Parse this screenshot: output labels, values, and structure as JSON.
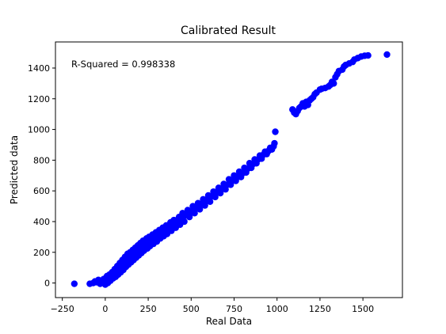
{
  "chart_data": {
    "type": "scatter",
    "title": "Calibrated Result",
    "xlabel": "Real Data",
    "ylabel": "Predicted data",
    "annotation": "R-Squared = 0.998338",
    "xlim": [
      -290,
      1730
    ],
    "ylim": [
      -95,
      1570
    ],
    "xticks": [
      -250,
      0,
      250,
      500,
      750,
      1000,
      1250,
      1500
    ],
    "xtick_labels": [
      "−250",
      "0",
      "250",
      "500",
      "750",
      "1000",
      "1250",
      "1500"
    ],
    "yticks": [
      0,
      200,
      400,
      600,
      800,
      1000,
      1200,
      1400
    ],
    "ytick_labels": [
      "0",
      "200",
      "400",
      "600",
      "800",
      "1000",
      "1200",
      "1400"
    ],
    "grid": false,
    "legend": "none",
    "marker_color": "#0000ff",
    "series": [
      {
        "points": [
          [
            -180,
            -5
          ],
          [
            -90,
            -5
          ],
          [
            -70,
            0
          ],
          [
            -60,
            10
          ],
          [
            -50,
            5
          ],
          [
            -40,
            20
          ],
          [
            -30,
            -5
          ],
          [
            -20,
            10
          ],
          [
            -10,
            25
          ],
          [
            0,
            -10
          ],
          [
            0,
            5
          ],
          [
            0,
            30
          ],
          [
            5,
            15
          ],
          [
            10,
            45
          ],
          [
            15,
            0
          ],
          [
            20,
            25
          ],
          [
            25,
            55
          ],
          [
            30,
            15
          ],
          [
            35,
            40
          ],
          [
            40,
            70
          ],
          [
            45,
            30
          ],
          [
            50,
            60
          ],
          [
            55,
            90
          ],
          [
            60,
            40
          ],
          [
            65,
            80
          ],
          [
            70,
            110
          ],
          [
            75,
            55
          ],
          [
            80,
            90
          ],
          [
            85,
            130
          ],
          [
            90,
            70
          ],
          [
            95,
            110
          ],
          [
            100,
            150
          ],
          [
            105,
            85
          ],
          [
            110,
            130
          ],
          [
            115,
            170
          ],
          [
            120,
            105
          ],
          [
            125,
            140
          ],
          [
            130,
            190
          ],
          [
            135,
            120
          ],
          [
            140,
            160
          ],
          [
            145,
            200
          ],
          [
            150,
            135
          ],
          [
            155,
            180
          ],
          [
            160,
            215
          ],
          [
            165,
            150
          ],
          [
            170,
            195
          ],
          [
            175,
            230
          ],
          [
            180,
            165
          ],
          [
            185,
            210
          ],
          [
            190,
            245
          ],
          [
            195,
            180
          ],
          [
            200,
            225
          ],
          [
            205,
            260
          ],
          [
            210,
            195
          ],
          [
            215,
            240
          ],
          [
            220,
            275
          ],
          [
            225,
            210
          ],
          [
            230,
            255
          ],
          [
            240,
            290
          ],
          [
            245,
            225
          ],
          [
            250,
            270
          ],
          [
            255,
            300
          ],
          [
            260,
            240
          ],
          [
            270,
            285
          ],
          [
            275,
            315
          ],
          [
            280,
            255
          ],
          [
            290,
            300
          ],
          [
            295,
            330
          ],
          [
            300,
            270
          ],
          [
            310,
            315
          ],
          [
            315,
            345
          ],
          [
            320,
            290
          ],
          [
            330,
            330
          ],
          [
            335,
            360
          ],
          [
            340,
            305
          ],
          [
            350,
            345
          ],
          [
            355,
            375
          ],
          [
            360,
            320
          ],
          [
            370,
            360
          ],
          [
            380,
            395
          ],
          [
            385,
            340
          ],
          [
            395,
            380
          ],
          [
            400,
            410
          ],
          [
            410,
            360
          ],
          [
            420,
            400
          ],
          [
            430,
            430
          ],
          [
            435,
            380
          ],
          [
            445,
            420
          ],
          [
            450,
            455
          ],
          [
            460,
            400
          ],
          [
            470,
            440
          ],
          [
            480,
            475
          ],
          [
            490,
            430
          ],
          [
            500,
            465
          ],
          [
            510,
            500
          ],
          [
            520,
            455
          ],
          [
            530,
            490
          ],
          [
            540,
            520
          ],
          [
            550,
            480
          ],
          [
            560,
            515
          ],
          [
            570,
            545
          ],
          [
            580,
            505
          ],
          [
            590,
            540
          ],
          [
            600,
            570
          ],
          [
            610,
            530
          ],
          [
            620,
            565
          ],
          [
            630,
            595
          ],
          [
            640,
            560
          ],
          [
            650,
            590
          ],
          [
            660,
            620
          ],
          [
            670,
            585
          ],
          [
            680,
            615
          ],
          [
            690,
            645
          ],
          [
            700,
            610
          ],
          [
            710,
            640
          ],
          [
            720,
            675
          ],
          [
            730,
            640
          ],
          [
            740,
            665
          ],
          [
            750,
            700
          ],
          [
            760,
            665
          ],
          [
            770,
            690
          ],
          [
            780,
            725
          ],
          [
            790,
            690
          ],
          [
            800,
            715
          ],
          [
            810,
            750
          ],
          [
            820,
            720
          ],
          [
            830,
            745
          ],
          [
            840,
            780
          ],
          [
            850,
            750
          ],
          [
            860,
            775
          ],
          [
            870,
            805
          ],
          [
            880,
            780
          ],
          [
            890,
            805
          ],
          [
            900,
            830
          ],
          [
            910,
            810
          ],
          [
            920,
            835
          ],
          [
            930,
            855
          ],
          [
            940,
            840
          ],
          [
            950,
            860
          ],
          [
            960,
            880
          ],
          [
            970,
            870
          ],
          [
            980,
            890
          ],
          [
            985,
            910
          ],
          [
            990,
            985
          ],
          [
            1090,
            1130
          ],
          [
            1100,
            1110
          ],
          [
            1110,
            1100
          ],
          [
            1120,
            1120
          ],
          [
            1130,
            1140
          ],
          [
            1140,
            1150
          ],
          [
            1150,
            1170
          ],
          [
            1160,
            1150
          ],
          [
            1170,
            1180
          ],
          [
            1180,
            1160
          ],
          [
            1190,
            1190
          ],
          [
            1200,
            1200
          ],
          [
            1210,
            1210
          ],
          [
            1220,
            1230
          ],
          [
            1230,
            1240
          ],
          [
            1250,
            1260
          ],
          [
            1260,
            1265
          ],
          [
            1280,
            1270
          ],
          [
            1300,
            1280
          ],
          [
            1310,
            1290
          ],
          [
            1320,
            1310
          ],
          [
            1330,
            1300
          ],
          [
            1340,
            1340
          ],
          [
            1350,
            1360
          ],
          [
            1360,
            1380
          ],
          [
            1380,
            1390
          ],
          [
            1390,
            1410
          ],
          [
            1400,
            1420
          ],
          [
            1420,
            1430
          ],
          [
            1440,
            1440
          ],
          [
            1450,
            1455
          ],
          [
            1470,
            1465
          ],
          [
            1490,
            1475
          ],
          [
            1510,
            1480
          ],
          [
            1530,
            1482
          ],
          [
            1640,
            1488
          ]
        ]
      }
    ]
  }
}
